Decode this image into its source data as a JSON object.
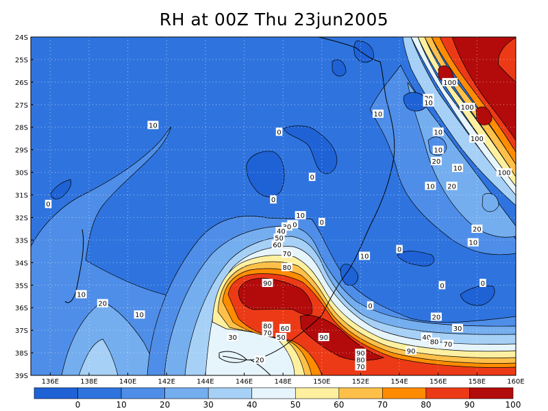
{
  "title": "RH at 00Z Thu 23jun2005",
  "map": {
    "lon_labels": [
      "136E",
      "138E",
      "140E",
      "142E",
      "144E",
      "146E",
      "148E",
      "150E",
      "152E",
      "154E",
      "156E",
      "158E",
      "160E"
    ],
    "lat_labels": [
      "24S",
      "25S",
      "26S",
      "27S",
      "28S",
      "29S",
      "30S",
      "31S",
      "32S",
      "33S",
      "34S",
      "35S",
      "36S",
      "37S",
      "38S",
      "39S"
    ],
    "lon_range": [
      135,
      160
    ],
    "lat_range": [
      -24,
      -39
    ],
    "grid": true
  },
  "contour_labels": [
    {
      "text": "10",
      "lon": 141.3,
      "lat": -27.9
    },
    {
      "text": "0",
      "lon": 135.9,
      "lat": -31.4
    },
    {
      "text": "0",
      "lon": 147.8,
      "lat": -28.2
    },
    {
      "text": "0",
      "lon": 149.5,
      "lat": -30.2
    },
    {
      "text": "0",
      "lon": 147.5,
      "lat": -31.2
    },
    {
      "text": "0",
      "lon": 150.0,
      "lat": -32.2
    },
    {
      "text": "10",
      "lon": 148.9,
      "lat": -31.9
    },
    {
      "text": "20",
      "lon": 148.5,
      "lat": -32.3
    },
    {
      "text": "30",
      "lon": 148.2,
      "lat": -32.4
    },
    {
      "text": "40",
      "lon": 147.9,
      "lat": -32.6
    },
    {
      "text": "50",
      "lon": 147.8,
      "lat": -32.9
    },
    {
      "text": "60",
      "lon": 147.7,
      "lat": -33.2
    },
    {
      "text": "70",
      "lon": 148.2,
      "lat": -33.6
    },
    {
      "text": "80",
      "lon": 148.2,
      "lat": -34.2
    },
    {
      "text": "90",
      "lon": 147.2,
      "lat": -34.9
    },
    {
      "text": "10",
      "lon": 137.6,
      "lat": -35.4
    },
    {
      "text": "20",
      "lon": 138.7,
      "lat": -35.8
    },
    {
      "text": "10",
      "lon": 140.6,
      "lat": -36.3
    },
    {
      "text": "10",
      "lon": 152.2,
      "lat": -33.7
    },
    {
      "text": "0",
      "lon": 154.0,
      "lat": -33.4
    },
    {
      "text": "0",
      "lon": 152.5,
      "lat": -35.9
    },
    {
      "text": "0",
      "lon": 156.2,
      "lat": -35.0
    },
    {
      "text": "0",
      "lon": 158.3,
      "lat": -34.9
    },
    {
      "text": "20",
      "lon": 155.9,
      "lat": -36.4
    },
    {
      "text": "30",
      "lon": 157.0,
      "lat": -36.9
    },
    {
      "text": "40",
      "lon": 155.4,
      "lat": -37.3
    },
    {
      "text": "80",
      "lon": 155.8,
      "lat": -37.5
    },
    {
      "text": "70",
      "lon": 156.5,
      "lat": -37.6
    },
    {
      "text": "80",
      "lon": 147.2,
      "lat": -36.8
    },
    {
      "text": "70",
      "lon": 147.2,
      "lat": -37.1
    },
    {
      "text": "60",
      "lon": 148.1,
      "lat": -36.9
    },
    {
      "text": "50",
      "lon": 147.9,
      "lat": -37.3
    },
    {
      "text": "90",
      "lon": 150.1,
      "lat": -37.3
    },
    {
      "text": "30",
      "lon": 145.4,
      "lat": -37.3
    },
    {
      "text": "20",
      "lon": 146.8,
      "lat": -38.3
    },
    {
      "text": "90",
      "lon": 152.0,
      "lat": -38.0
    },
    {
      "text": "80",
      "lon": 152.0,
      "lat": -38.3
    },
    {
      "text": "70",
      "lon": 152.0,
      "lat": -38.6
    },
    {
      "text": "90",
      "lon": 154.6,
      "lat": -37.9
    },
    {
      "text": "10",
      "lon": 152.9,
      "lat": -27.4
    },
    {
      "text": "20",
      "lon": 155.5,
      "lat": -26.7
    },
    {
      "text": "10",
      "lon": 155.5,
      "lat": -26.9
    },
    {
      "text": "100",
      "lon": 156.6,
      "lat": -26.0
    },
    {
      "text": "100",
      "lon": 157.5,
      "lat": -27.1
    },
    {
      "text": "100",
      "lon": 158.0,
      "lat": -28.5
    },
    {
      "text": "100",
      "lon": 159.4,
      "lat": -30.0
    },
    {
      "text": "10",
      "lon": 156.0,
      "lat": -28.2
    },
    {
      "text": "10",
      "lon": 156.0,
      "lat": -29.0
    },
    {
      "text": "20",
      "lon": 155.9,
      "lat": -29.5
    },
    {
      "text": "10",
      "lon": 157.0,
      "lat": -29.8
    },
    {
      "text": "20",
      "lon": 156.7,
      "lat": -30.6
    },
    {
      "text": "10",
      "lon": 155.6,
      "lat": -30.6
    },
    {
      "text": "20",
      "lon": 158.0,
      "lat": -32.5
    },
    {
      "text": "10",
      "lon": 157.8,
      "lat": -33.1
    }
  ],
  "colorbar": {
    "labels": [
      "0",
      "10",
      "20",
      "30",
      "40",
      "50",
      "60",
      "70",
      "80",
      "90",
      "100"
    ],
    "colors": [
      "#1f62d6",
      "#2f74de",
      "#4f8ee8",
      "#74aeef",
      "#a6d0f6",
      "#e6f4fc",
      "#fff0a0",
      "#ffc04a",
      "#ff8c00",
      "#ec3a17",
      "#b30b0b"
    ]
  }
}
